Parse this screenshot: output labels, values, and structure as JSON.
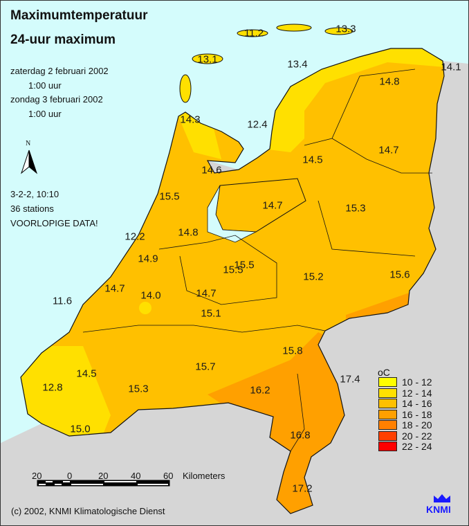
{
  "header": {
    "title": "Maximumtemperatuur",
    "subtitle": "24-uur maximum",
    "period_start_date": "zaterdag 2 februari 2002",
    "period_start_time": "1:00 uur",
    "period_end_date": "zondag 3 februari 2002",
    "period_end_time": "1:00 uur"
  },
  "north_arrow": {
    "label": "N",
    "icon": "north-arrow-icon"
  },
  "meta": {
    "run": "3-2-2, 10:10",
    "stations": "36 stations",
    "status": "VOORLOPIGE DATA!"
  },
  "colors": {
    "sea": "#d4fcfc",
    "foreign_land": "#d6d6d6",
    "10-12": "#ffff00",
    "12-14": "#ffe000",
    "14-16": "#ffc000",
    "16-18": "#ffa000",
    "18-20": "#ff8000",
    "20-22": "#ff4000",
    "22-24": "#ff0000"
  },
  "legend": {
    "unit": "oC",
    "classes": [
      {
        "label": "10 - 12",
        "color": "#ffff00"
      },
      {
        "label": "12 - 14",
        "color": "#ffe000"
      },
      {
        "label": "14 - 16",
        "color": "#ffc000"
      },
      {
        "label": "16 - 18",
        "color": "#ffa000"
      },
      {
        "label": "18 - 20",
        "color": "#ff8000"
      },
      {
        "label": "20 - 22",
        "color": "#ff4000"
      },
      {
        "label": "22 - 24",
        "color": "#ff0000"
      }
    ]
  },
  "stations": [
    "11.2",
    "13.3",
    "13.1",
    "13.4",
    "14.1",
    "14.8",
    "14.3",
    "12.4",
    "14.7",
    "14.5",
    "14.6",
    "15.5",
    "14.7",
    "15.3",
    "12.2",
    "14.8",
    "14.9",
    "15.5",
    "15.5",
    "15.2",
    "15.6",
    "14.7",
    "14.0",
    "14.7",
    "11.6",
    "15.1",
    "15.8",
    "17.4",
    "14.5",
    "15.7",
    "12.8",
    "15.3",
    "16.2",
    "15.0",
    "16.8",
    "17.2"
  ],
  "scale_bar": {
    "ticks": [
      "20",
      "0",
      "20",
      "40",
      "60"
    ],
    "unit": "Kilometers"
  },
  "footer": {
    "copyright": "(c) 2002, KNMI Klimatologische Dienst",
    "logo_text": "KNMI"
  }
}
